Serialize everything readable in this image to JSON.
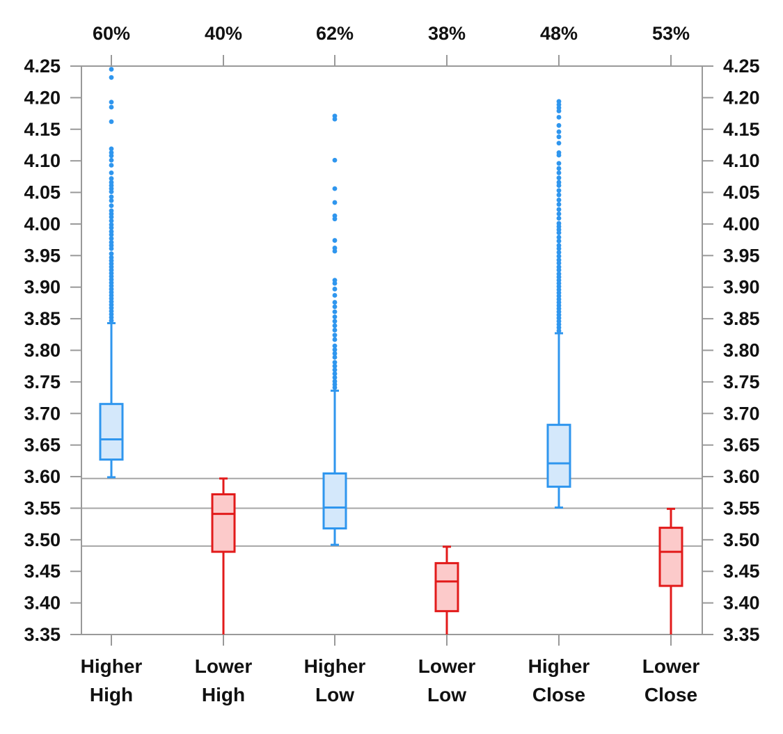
{
  "chart_data": {
    "type": "box",
    "categories": [
      {
        "line1": "Higher",
        "line2": "High"
      },
      {
        "line1": "Lower",
        "line2": "High"
      },
      {
        "line1": "Higher",
        "line2": "Low"
      },
      {
        "line1": "Lower",
        "line2": "Low"
      },
      {
        "line1": "Higher",
        "line2": "Close"
      },
      {
        "line1": "Lower",
        "line2": "Close"
      }
    ],
    "top_labels": [
      "60%",
      "40%",
      "62%",
      "38%",
      "48%",
      "53%"
    ],
    "ylim": [
      3.35,
      4.25
    ],
    "yticks": [
      "4.25",
      "4.20",
      "4.15",
      "4.10",
      "4.05",
      "4.00",
      "3.95",
      "3.90",
      "3.85",
      "3.80",
      "3.75",
      "3.70",
      "3.65",
      "3.60",
      "3.55",
      "3.50",
      "3.45",
      "3.40",
      "3.35"
    ],
    "reference_lines": [
      3.597,
      3.55,
      3.49
    ],
    "colors": {
      "higher_stroke": "#2f96ee",
      "higher_fill": "#d4e8fb",
      "lower_stroke": "#e21b1b",
      "lower_fill": "#fccaca",
      "frame": "#999999",
      "reference": "#a6a6a6"
    },
    "boxes": [
      {
        "category": "Higher High",
        "color": "blue",
        "whisker_low": 3.599,
        "q1": 3.627,
        "median": 3.659,
        "q3": 3.715,
        "whisker_high": 3.843,
        "outliers": [
          4.245,
          4.232,
          4.193,
          4.185,
          4.162,
          4.119,
          4.113,
          4.108,
          4.101,
          4.093,
          4.081,
          4.072,
          4.066,
          4.061,
          4.056,
          4.051,
          4.043,
          4.037,
          4.029,
          4.021,
          4.016,
          4.011,
          4.005,
          3.999,
          3.994,
          3.988,
          3.983,
          3.977,
          3.971,
          3.966,
          3.961,
          3.953,
          3.947,
          3.942,
          3.937,
          3.932,
          3.927,
          3.922,
          3.917,
          3.912,
          3.907,
          3.902,
          3.897,
          3.892,
          3.887,
          3.882,
          3.877,
          3.872,
          3.867,
          3.862,
          3.857,
          3.852,
          3.847
        ]
      },
      {
        "category": "Lower High",
        "color": "red",
        "whisker_low": 3.35,
        "q1": 3.481,
        "median": 3.541,
        "q3": 3.572,
        "whisker_high": 3.597,
        "outliers": []
      },
      {
        "category": "Higher Low",
        "color": "blue",
        "whisker_low": 3.492,
        "q1": 3.518,
        "median": 3.551,
        "q3": 3.605,
        "whisker_high": 3.736,
        "outliers": [
          4.171,
          4.166,
          4.101,
          4.056,
          4.034,
          4.013,
          4.008,
          3.974,
          3.962,
          3.957,
          3.911,
          3.906,
          3.897,
          3.887,
          3.876,
          3.869,
          3.861,
          3.853,
          3.846,
          3.839,
          3.832,
          3.824,
          3.817,
          3.807,
          3.801,
          3.795,
          3.789,
          3.781,
          3.775,
          3.769,
          3.763,
          3.757,
          3.751,
          3.746,
          3.741
        ]
      },
      {
        "category": "Lower Low",
        "color": "red",
        "whisker_low": 3.35,
        "q1": 3.387,
        "median": 3.434,
        "q3": 3.463,
        "whisker_high": 3.489,
        "outliers": []
      },
      {
        "category": "Higher Close",
        "color": "blue",
        "whisker_low": 3.551,
        "q1": 3.584,
        "median": 3.621,
        "q3": 3.682,
        "whisker_high": 3.827,
        "outliers": [
          4.194,
          4.189,
          4.184,
          4.179,
          4.169,
          4.156,
          4.146,
          4.138,
          4.128,
          4.113,
          4.109,
          4.096,
          4.088,
          4.081,
          4.073,
          4.066,
          4.061,
          4.053,
          4.046,
          4.038,
          4.031,
          4.023,
          4.016,
          4.009,
          4.001,
          3.996,
          3.991,
          3.986,
          3.979,
          3.973,
          3.966,
          3.961,
          3.955,
          3.949,
          3.943,
          3.938,
          3.932,
          3.927,
          3.921,
          3.916,
          3.911,
          3.906,
          3.901,
          3.896,
          3.891,
          3.886,
          3.881,
          3.876,
          3.871,
          3.866,
          3.861,
          3.856,
          3.851,
          3.846,
          3.841,
          3.836,
          3.831
        ]
      },
      {
        "category": "Lower Close",
        "color": "red",
        "whisker_low": 3.35,
        "q1": 3.427,
        "median": 3.481,
        "q3": 3.519,
        "whisker_high": 3.549,
        "outliers": []
      }
    ]
  }
}
